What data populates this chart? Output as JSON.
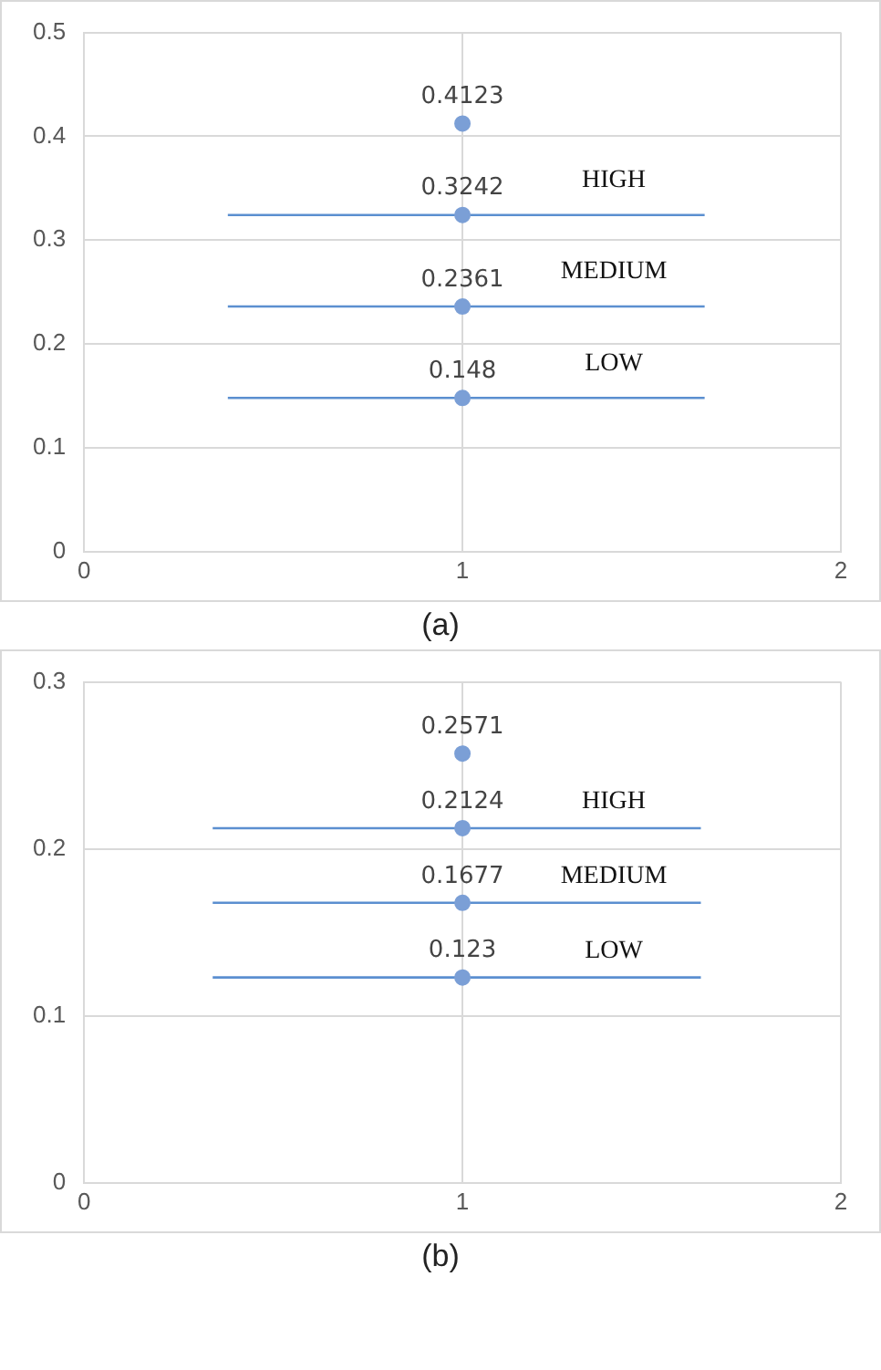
{
  "chart_data": [
    {
      "type": "scatter",
      "xlim": [
        0,
        2
      ],
      "xticks": [
        0,
        1,
        2
      ],
      "ylim": [
        0,
        0.5
      ],
      "yticks": [
        0,
        0.1,
        0.2,
        0.3,
        0.4,
        0.5
      ],
      "grid": true,
      "series": [
        {
          "type": "scatter",
          "marker": "circle",
          "color": "#7b9fd6",
          "x": [
            1,
            1,
            1,
            1
          ],
          "values": [
            0.4123,
            0.3242,
            0.2361,
            0.148
          ],
          "value_labels": [
            "0.4123",
            "0.3242",
            "0.2361",
            "0.148"
          ]
        },
        {
          "type": "line",
          "marker": "none",
          "color": "#5b8fd0",
          "x": [
            0.38,
            1.64
          ],
          "values": [
            0.3242,
            0.3242
          ]
        },
        {
          "type": "line",
          "marker": "none",
          "color": "#5b8fd0",
          "x": [
            0.38,
            1.64
          ],
          "values": [
            0.2361,
            0.2361
          ]
        },
        {
          "type": "line",
          "marker": "none",
          "color": "#5b8fd0",
          "x": [
            0.38,
            1.64
          ],
          "values": [
            0.148,
            0.148
          ]
        }
      ],
      "annotations": [
        "HIGH",
        "MEDIUM",
        "LOW",
        "(a)"
      ]
    },
    {
      "type": "scatter",
      "xlim": [
        0,
        2
      ],
      "xticks": [
        0,
        1,
        2
      ],
      "ylim": [
        0,
        0.3
      ],
      "yticks": [
        0,
        0.1,
        0.2,
        0.3
      ],
      "grid": true,
      "series": [
        {
          "type": "scatter",
          "marker": "circle",
          "color": "#7b9fd6",
          "x": [
            1,
            1,
            1,
            1
          ],
          "values": [
            0.2571,
            0.2124,
            0.1677,
            0.123
          ],
          "value_labels": [
            "0.2571",
            "0.2124",
            "0.1677",
            "0.123"
          ]
        },
        {
          "type": "line",
          "marker": "none",
          "color": "#5b8fd0",
          "x": [
            0.34,
            1.63
          ],
          "values": [
            0.2124,
            0.2124
          ]
        },
        {
          "type": "line",
          "marker": "none",
          "color": "#5b8fd0",
          "x": [
            0.34,
            1.63
          ],
          "values": [
            0.1677,
            0.1677
          ]
        },
        {
          "type": "line",
          "marker": "none",
          "color": "#5b8fd0",
          "x": [
            0.34,
            1.63
          ],
          "values": [
            0.123,
            0.123
          ]
        }
      ],
      "annotations": [
        "HIGH",
        "MEDIUM",
        "LOW",
        "(b)"
      ]
    }
  ]
}
